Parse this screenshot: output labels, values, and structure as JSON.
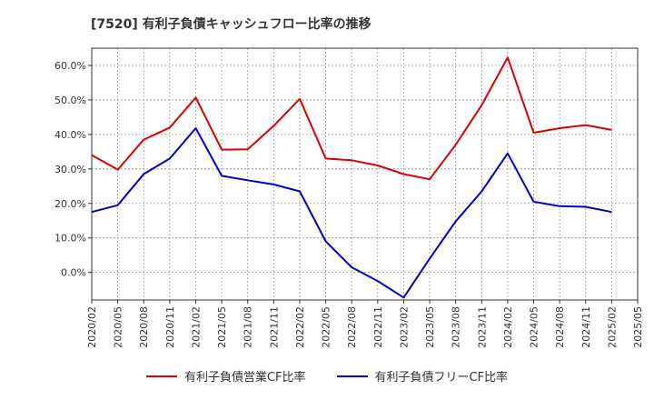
{
  "chart_data": {
    "type": "line",
    "title": "[7520]  有利子負債キャッシュフロー比率の推移",
    "ylim": [
      -0.08,
      0.65
    ],
    "yticks": [
      0.0,
      0.1,
      0.2,
      0.3,
      0.4,
      0.5,
      0.6
    ],
    "ytick_labels": [
      "0.0%",
      "10.0%",
      "20.0%",
      "30.0%",
      "40.0%",
      "50.0%",
      "60.0%"
    ],
    "xticks": [
      "2020/02",
      "2020/05",
      "2020/08",
      "2020/11",
      "2021/02",
      "2021/05",
      "2021/08",
      "2021/11",
      "2022/02",
      "2022/05",
      "2022/08",
      "2022/11",
      "2023/02",
      "2023/05",
      "2023/08",
      "2023/11",
      "2024/02",
      "2024/05",
      "2024/08",
      "2024/11",
      "2025/02",
      "2025/05"
    ],
    "x": [
      "2020/02",
      "2020/05",
      "2020/08",
      "2020/11",
      "2021/02",
      "2021/05",
      "2021/08",
      "2021/11",
      "2022/02",
      "2022/05",
      "2022/08",
      "2022/11",
      "2023/02",
      "2023/05",
      "2023/08",
      "2023/11",
      "2024/02",
      "2024/05",
      "2024/08",
      "2024/11",
      "2025/02"
    ],
    "grid": true,
    "legend_position": "bottom",
    "series": [
      {
        "name": "有利子負債営業CF比率",
        "color": "#dd0000",
        "values": [
          0.34,
          0.298,
          0.385,
          0.42,
          0.507,
          0.356,
          0.357,
          0.425,
          0.503,
          0.33,
          0.325,
          0.31,
          0.285,
          0.27,
          0.37,
          0.485,
          0.623,
          0.405,
          0.418,
          0.427,
          0.413
        ]
      },
      {
        "name": "有利子負債フリーCF比率",
        "color": "#0000cc",
        "values": [
          0.175,
          0.195,
          0.285,
          0.33,
          0.418,
          0.28,
          0.267,
          0.255,
          0.235,
          0.09,
          0.015,
          -0.025,
          -0.073,
          0.04,
          0.148,
          0.235,
          0.345,
          0.205,
          0.192,
          0.19,
          0.175
        ]
      }
    ]
  }
}
